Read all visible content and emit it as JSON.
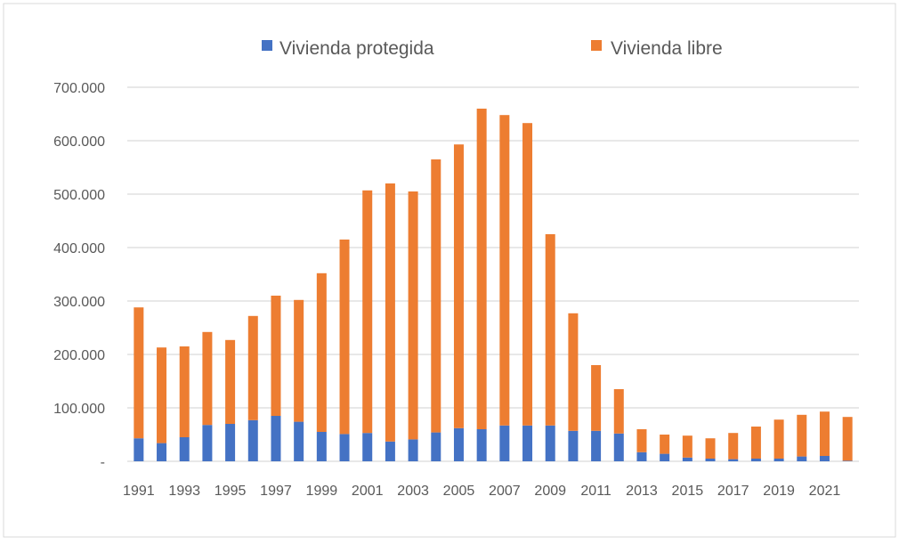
{
  "chart_data": {
    "type": "bar",
    "stacked": true,
    "categories": [
      "1991",
      "1992",
      "1993",
      "1994",
      "1995",
      "1996",
      "1997",
      "1998",
      "1999",
      "2000",
      "2001",
      "2002",
      "2003",
      "2004",
      "2005",
      "2006",
      "2007",
      "2008",
      "2009",
      "2010",
      "2011",
      "2012",
      "2013",
      "2014",
      "2015",
      "2016",
      "2017",
      "2018",
      "2019",
      "2020",
      "2021",
      "2022"
    ],
    "x_tick_labels": [
      "1991",
      "1993",
      "1995",
      "1997",
      "1999",
      "2001",
      "2003",
      "2005",
      "2007",
      "2009",
      "2011",
      "2013",
      "2015",
      "2017",
      "2019",
      "2021"
    ],
    "y_tick_labels": [
      "-",
      "100.000",
      "200.000",
      "300.000",
      "400.000",
      "500.000",
      "600.000",
      "700.000"
    ],
    "ylim": [
      0,
      700000
    ],
    "grid": true,
    "legend": "top",
    "series": [
      {
        "name": "Vivienda protegida",
        "color": "#4472C4",
        "values": [
          43000,
          34000,
          45000,
          68000,
          70000,
          77000,
          85000,
          74000,
          55000,
          51000,
          53000,
          37000,
          41000,
          54000,
          62000,
          60000,
          67000,
          67000,
          67000,
          57000,
          57000,
          52000,
          17000,
          14000,
          7000,
          5000,
          4000,
          5000,
          5000,
          9000,
          10000,
          1000
        ]
      },
      {
        "name": "Vivienda libre",
        "color": "#ED7D31",
        "values": [
          245000,
          179000,
          170000,
          174000,
          157000,
          195000,
          225000,
          228000,
          297000,
          364000,
          454000,
          483000,
          464000,
          511000,
          531000,
          600000,
          581000,
          566000,
          358000,
          220000,
          123000,
          83000,
          43000,
          36000,
          41000,
          38000,
          49000,
          60000,
          73000,
          78000,
          83000,
          82000
        ]
      }
    ]
  }
}
